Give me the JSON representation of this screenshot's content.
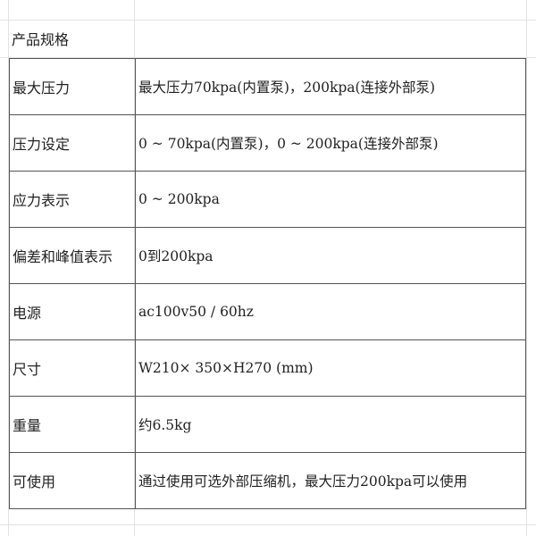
{
  "sheet": {
    "title": "产品规格",
    "rows": [
      {
        "label": "最大压力",
        "value": "最大压力70kpa(内置泵)，200kpa(连接外部泵)"
      },
      {
        "label": "压力设定",
        "value": "0 ~ 70kpa(内置泵)，0 ~ 200kpa(连接外部泵)"
      },
      {
        "label": "应力表示",
        "value": "0 ~ 200kpa"
      },
      {
        "label": "偏差和峰值表示",
        "value": "0到200kpa"
      },
      {
        "label": "电源",
        "value": "ac100v50 / 60hz"
      },
      {
        "label": "尺寸",
        "value": "W210× 350×H270 (mm)"
      },
      {
        "label": "重量",
        "value": "约6.5kg"
      },
      {
        "label": "可使用",
        "value": "通过使用可选外部压缩机，最大压力200kpa可以使用"
      }
    ]
  }
}
